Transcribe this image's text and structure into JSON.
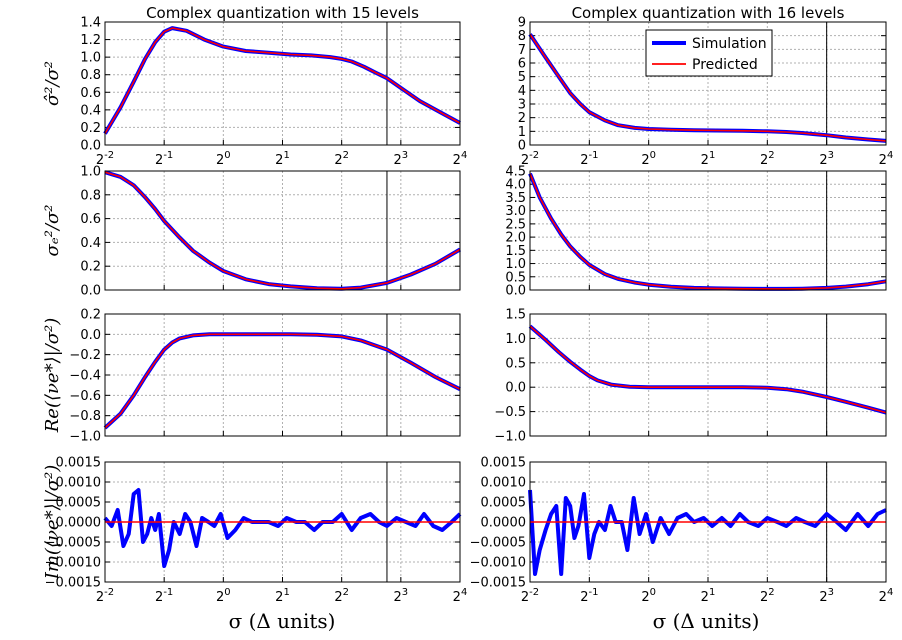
{
  "figure": {
    "x_label_left": "σ (Δ units)",
    "x_label_right": "σ (Δ units)"
  },
  "colors": {
    "simulation": "#0000ff",
    "predicted": "#ff0000",
    "grid": "#b0b0b0",
    "vline": "#000000"
  },
  "legend": {
    "simulation": "Simulation",
    "predicted": "Predicted",
    "placement": "upper-center"
  },
  "chart_data": [
    {
      "id": "r0c0",
      "type": "line",
      "title": "Complex quantization with 15 levels",
      "ylabel": "σ̂²/σ²",
      "xscale": "log2",
      "xlim": [
        0.25,
        16
      ],
      "ylim": [
        0,
        1.4
      ],
      "yticks": [
        "0.0",
        "0.2",
        "0.4",
        "0.6",
        "0.8",
        "1.0",
        "1.2",
        "1.4"
      ],
      "xticks": [
        "2^-2",
        "2^-1",
        "2^0",
        "2^1",
        "2^2",
        "2^3",
        "2^4"
      ],
      "vline_x": 6.8,
      "grid": true,
      "series": [
        {
          "name": "Simulation",
          "x": [
            0.25,
            0.3,
            0.35,
            0.4,
            0.45,
            0.5,
            0.55,
            0.65,
            0.8,
            1,
            1.3,
            1.7,
            2.2,
            2.8,
            3.5,
            4,
            4.5,
            5.2,
            6,
            6.8,
            8,
            10,
            13,
            16
          ],
          "y": [
            0.13,
            0.43,
            0.72,
            0.98,
            1.17,
            1.29,
            1.33,
            1.3,
            1.2,
            1.12,
            1.07,
            1.05,
            1.03,
            1.02,
            1.0,
            0.98,
            0.95,
            0.89,
            0.82,
            0.76,
            0.65,
            0.5,
            0.36,
            0.25
          ]
        },
        {
          "name": "Predicted",
          "x": [
            0.25,
            0.3,
            0.35,
            0.4,
            0.45,
            0.5,
            0.55,
            0.65,
            0.8,
            1,
            1.3,
            1.7,
            2.2,
            2.8,
            3.5,
            4,
            4.5,
            5.2,
            6,
            6.8,
            8,
            10,
            13,
            16
          ],
          "y": [
            0.13,
            0.43,
            0.72,
            0.98,
            1.17,
            1.29,
            1.33,
            1.3,
            1.2,
            1.12,
            1.07,
            1.05,
            1.03,
            1.02,
            1.0,
            0.98,
            0.95,
            0.89,
            0.82,
            0.76,
            0.65,
            0.5,
            0.36,
            0.25
          ]
        }
      ]
    },
    {
      "id": "r0c1",
      "type": "line",
      "title": "Complex quantization with 16 levels",
      "ylabel": "",
      "xscale": "log2",
      "xlim": [
        0.25,
        16
      ],
      "ylim": [
        0,
        9
      ],
      "yticks": [
        "0",
        "1",
        "2",
        "3",
        "4",
        "5",
        "6",
        "7",
        "8",
        "9"
      ],
      "xticks": [
        "2^-2",
        "2^-1",
        "2^0",
        "2^1",
        "2^2",
        "2^3",
        "2^4"
      ],
      "vline_x": 8,
      "grid": true,
      "legend": true,
      "series": [
        {
          "name": "Simulation",
          "x": [
            0.25,
            0.3,
            0.35,
            0.4,
            0.45,
            0.5,
            0.6,
            0.7,
            0.85,
            1,
            1.3,
            1.7,
            2.2,
            3,
            4,
            5,
            6,
            8,
            10,
            13,
            16
          ],
          "y": [
            8.1,
            6.4,
            5.0,
            3.8,
            3.0,
            2.4,
            1.8,
            1.45,
            1.25,
            1.17,
            1.12,
            1.08,
            1.06,
            1.04,
            1.0,
            0.95,
            0.88,
            0.72,
            0.55,
            0.4,
            0.3
          ]
        },
        {
          "name": "Predicted",
          "x": [
            0.25,
            0.3,
            0.35,
            0.4,
            0.45,
            0.5,
            0.6,
            0.7,
            0.85,
            1,
            1.3,
            1.7,
            2.2,
            3,
            4,
            5,
            6,
            8,
            10,
            13,
            16
          ],
          "y": [
            8.1,
            6.4,
            5.0,
            3.8,
            3.0,
            2.4,
            1.8,
            1.45,
            1.25,
            1.17,
            1.12,
            1.08,
            1.06,
            1.04,
            1.0,
            0.95,
            0.88,
            0.72,
            0.55,
            0.4,
            0.3
          ]
        }
      ]
    },
    {
      "id": "r1c0",
      "type": "line",
      "title": "",
      "ylabel": "σₑ²/σ²",
      "xscale": "log2",
      "xlim": [
        0.25,
        16
      ],
      "ylim": [
        0,
        1
      ],
      "yticks": [
        "0.0",
        "0.2",
        "0.4",
        "0.6",
        "0.8",
        "1.0"
      ],
      "xticks": [],
      "vline_x": 6.8,
      "grid": true,
      "series": [
        {
          "name": "Simulation",
          "x": [
            0.25,
            0.3,
            0.35,
            0.4,
            0.45,
            0.5,
            0.6,
            0.7,
            0.85,
            1,
            1.3,
            1.7,
            2.2,
            3,
            4,
            5,
            6.8,
            9,
            12,
            16
          ],
          "y": [
            0.99,
            0.95,
            0.88,
            0.78,
            0.68,
            0.58,
            0.44,
            0.33,
            0.23,
            0.16,
            0.09,
            0.05,
            0.03,
            0.015,
            0.01,
            0.02,
            0.06,
            0.13,
            0.22,
            0.34
          ]
        },
        {
          "name": "Predicted",
          "x": [
            0.25,
            0.3,
            0.35,
            0.4,
            0.45,
            0.5,
            0.6,
            0.7,
            0.85,
            1,
            1.3,
            1.7,
            2.2,
            3,
            4,
            5,
            6.8,
            9,
            12,
            16
          ],
          "y": [
            0.99,
            0.95,
            0.88,
            0.78,
            0.68,
            0.58,
            0.44,
            0.33,
            0.23,
            0.16,
            0.09,
            0.05,
            0.03,
            0.015,
            0.01,
            0.02,
            0.06,
            0.13,
            0.22,
            0.34
          ]
        }
      ]
    },
    {
      "id": "r1c1",
      "type": "line",
      "title": "",
      "ylabel": "",
      "xscale": "log2",
      "xlim": [
        0.25,
        16
      ],
      "ylim": [
        0,
        4.5
      ],
      "yticks": [
        "0.0",
        "0.5",
        "1.0",
        "1.5",
        "2.0",
        "2.5",
        "3.0",
        "3.5",
        "4.0",
        "4.5"
      ],
      "xticks": [],
      "vline_x": 8,
      "grid": true,
      "series": [
        {
          "name": "Simulation",
          "x": [
            0.25,
            0.28,
            0.32,
            0.36,
            0.4,
            0.45,
            0.5,
            0.6,
            0.7,
            0.85,
            1,
            1.3,
            1.7,
            2.2,
            3,
            4,
            5,
            6,
            8,
            10,
            13,
            16
          ],
          "y": [
            4.4,
            3.5,
            2.7,
            2.1,
            1.65,
            1.25,
            0.95,
            0.6,
            0.42,
            0.28,
            0.2,
            0.12,
            0.08,
            0.06,
            0.05,
            0.04,
            0.04,
            0.05,
            0.08,
            0.13,
            0.22,
            0.33
          ]
        },
        {
          "name": "Predicted",
          "x": [
            0.25,
            0.28,
            0.32,
            0.36,
            0.4,
            0.45,
            0.5,
            0.6,
            0.7,
            0.85,
            1,
            1.3,
            1.7,
            2.2,
            3,
            4,
            5,
            6,
            8,
            10,
            13,
            16
          ],
          "y": [
            4.4,
            3.5,
            2.7,
            2.1,
            1.65,
            1.25,
            0.95,
            0.6,
            0.42,
            0.28,
            0.2,
            0.12,
            0.08,
            0.06,
            0.05,
            0.04,
            0.04,
            0.05,
            0.08,
            0.13,
            0.22,
            0.33
          ]
        }
      ]
    },
    {
      "id": "r2c0",
      "type": "line",
      "title": "",
      "ylabel": "Re(⟨νe*⟩|/σ²)",
      "xscale": "log2",
      "xlim": [
        0.25,
        16
      ],
      "ylim": [
        -1,
        0.2
      ],
      "yticks": [
        "−1.0",
        "−0.8",
        "−0.6",
        "−0.4",
        "−0.2",
        "0.0",
        "0.2"
      ],
      "xticks": [],
      "vline_x": 6.8,
      "grid": true,
      "series": [
        {
          "name": "Simulation",
          "x": [
            0.25,
            0.3,
            0.35,
            0.4,
            0.45,
            0.5,
            0.55,
            0.6,
            0.7,
            0.85,
            1,
            1.3,
            1.7,
            2.2,
            3,
            4,
            5,
            6.8,
            9,
            12,
            16
          ],
          "y": [
            -0.92,
            -0.78,
            -0.6,
            -0.42,
            -0.27,
            -0.15,
            -0.08,
            -0.04,
            -0.01,
            0,
            0,
            0,
            0,
            0,
            -0.005,
            -0.02,
            -0.06,
            -0.15,
            -0.28,
            -0.42,
            -0.54
          ]
        },
        {
          "name": "Predicted",
          "x": [
            0.25,
            0.3,
            0.35,
            0.4,
            0.45,
            0.5,
            0.55,
            0.6,
            0.7,
            0.85,
            1,
            1.3,
            1.7,
            2.2,
            3,
            4,
            5,
            6.8,
            9,
            12,
            16
          ],
          "y": [
            -0.92,
            -0.78,
            -0.6,
            -0.42,
            -0.27,
            -0.15,
            -0.08,
            -0.04,
            -0.01,
            0,
            0,
            0,
            0,
            0,
            -0.005,
            -0.02,
            -0.06,
            -0.15,
            -0.28,
            -0.42,
            -0.54
          ]
        }
      ]
    },
    {
      "id": "r2c1",
      "type": "line",
      "title": "",
      "ylabel": "",
      "xscale": "log2",
      "xlim": [
        0.25,
        16
      ],
      "ylim": [
        -1,
        1.5
      ],
      "yticks": [
        "−1.0",
        "−0.5",
        "0.0",
        "0.5",
        "1.0",
        "1.5"
      ],
      "xticks": [],
      "vline_x": 8,
      "grid": true,
      "series": [
        {
          "name": "Simulation",
          "x": [
            0.25,
            0.3,
            0.35,
            0.4,
            0.45,
            0.5,
            0.55,
            0.65,
            0.8,
            1,
            1.3,
            1.7,
            2.2,
            3,
            4,
            5,
            6,
            8,
            10,
            13,
            16
          ],
          "y": [
            1.25,
            0.97,
            0.72,
            0.52,
            0.36,
            0.23,
            0.14,
            0.05,
            0.01,
            0,
            0,
            0,
            0,
            0,
            -0.01,
            -0.04,
            -0.09,
            -0.2,
            -0.3,
            -0.42,
            -0.52
          ]
        },
        {
          "name": "Predicted",
          "x": [
            0.25,
            0.3,
            0.35,
            0.4,
            0.45,
            0.5,
            0.55,
            0.65,
            0.8,
            1,
            1.3,
            1.7,
            2.2,
            3,
            4,
            5,
            6,
            8,
            10,
            13,
            16
          ],
          "y": [
            1.25,
            0.97,
            0.72,
            0.52,
            0.36,
            0.23,
            0.14,
            0.05,
            0.01,
            0,
            0,
            0,
            0,
            0,
            -0.01,
            -0.04,
            -0.09,
            -0.2,
            -0.3,
            -0.42,
            -0.52
          ]
        }
      ]
    },
    {
      "id": "r3c0",
      "type": "line",
      "title": "",
      "ylabel": "Im(⟨νe*⟩|/σ²)",
      "xscale": "log2",
      "xlim": [
        0.25,
        16
      ],
      "ylim": [
        -0.0015,
        0.0015
      ],
      "yticks": [
        "−0.0015",
        "−0.0010",
        "−0.0005",
        "0.0000",
        "0.0005",
        "0.0010",
        "0.0015"
      ],
      "xticks": [
        "2^-2",
        "2^-1",
        "2^0",
        "2^1",
        "2^2",
        "2^3",
        "2^4"
      ],
      "vline_x": 6.8,
      "grid": true,
      "series": [
        {
          "name": "Simulation",
          "x": [
            0.25,
            0.27,
            0.29,
            0.31,
            0.33,
            0.35,
            0.37,
            0.39,
            0.41,
            0.43,
            0.45,
            0.47,
            0.5,
            0.53,
            0.56,
            0.6,
            0.64,
            0.68,
            0.73,
            0.78,
            0.84,
            0.9,
            0.97,
            1.05,
            1.15,
            1.27,
            1.4,
            1.55,
            1.7,
            1.9,
            2.1,
            2.35,
            2.6,
            2.9,
            3.2,
            3.6,
            4,
            4.5,
            5,
            5.6,
            6.2,
            6.8,
            7.6,
            8.5,
            9.5,
            10.5,
            11.7,
            13,
            14.5,
            16
          ],
          "y": [
            0.0001,
            -0.0001,
            0.0003,
            -0.0006,
            -0.0003,
            0.0007,
            0.0008,
            -0.0005,
            -0.0003,
            0.0001,
            -0.0002,
            0.0002,
            -0.0011,
            -0.0007,
            0.0,
            -0.0003,
            0.0002,
            0.0,
            -0.0006,
            0.0001,
            0.0,
            -0.0001,
            0.0002,
            -0.0004,
            -0.0002,
            0.0001,
            0.0,
            0.0,
            0.0,
            -0.0001,
            0.0001,
            0.0,
            0.0,
            -0.0002,
            0.0,
            0.0,
            0.0002,
            -0.0002,
            0.0001,
            0.0002,
            0.0,
            -0.0001,
            0.0001,
            0.0,
            -0.0001,
            0.0002,
            -0.0001,
            -0.0002,
            0.0,
            0.0002
          ]
        },
        {
          "name": "Predicted",
          "x": [
            0.25,
            16
          ],
          "y": [
            0,
            0
          ]
        }
      ]
    },
    {
      "id": "r3c1",
      "type": "line",
      "title": "",
      "ylabel": "",
      "xscale": "log2",
      "xlim": [
        0.25,
        16
      ],
      "ylim": [
        -0.0015,
        0.0015
      ],
      "yticks": [
        "−0.0015",
        "−0.0010",
        "−0.0005",
        "0.0000",
        "0.0005",
        "0.0010",
        "0.0015"
      ],
      "xticks": [
        "2^-2",
        "2^-1",
        "2^0",
        "2^1",
        "2^2",
        "2^3",
        "2^4"
      ],
      "vline_x": 8,
      "grid": true,
      "series": [
        {
          "name": "Simulation",
          "x": [
            0.25,
            0.265,
            0.28,
            0.3,
            0.32,
            0.34,
            0.36,
            0.38,
            0.4,
            0.42,
            0.44,
            0.47,
            0.5,
            0.53,
            0.56,
            0.6,
            0.64,
            0.68,
            0.73,
            0.78,
            0.84,
            0.9,
            0.97,
            1.05,
            1.15,
            1.27,
            1.4,
            1.55,
            1.7,
            1.9,
            2.1,
            2.35,
            2.6,
            2.9,
            3.2,
            3.6,
            4,
            4.5,
            5,
            5.6,
            6.2,
            7,
            8,
            9,
            10,
            11.5,
            13,
            14.5,
            16
          ],
          "y": [
            0.0008,
            -0.0013,
            -0.0007,
            -0.0002,
            0.0002,
            0.0004,
            -0.0013,
            0.0006,
            0.0004,
            -0.0004,
            -0.0001,
            0.0007,
            -0.0009,
            -0.0003,
            0.0,
            -0.0002,
            0.0004,
            0.0,
            0.0,
            -0.0007,
            0.0006,
            -0.0003,
            0.0002,
            -0.0005,
            0.0001,
            -0.0003,
            0.0001,
            0.0002,
            0.0,
            0.0001,
            -0.0001,
            0.0001,
            -0.0001,
            0.0002,
            0.0,
            -0.0001,
            0.0001,
            0.0,
            -0.0001,
            0.0001,
            0.0,
            -0.0001,
            0.0002,
            0.0,
            -0.0002,
            0.0002,
            -0.0001,
            0.0002,
            0.0003
          ]
        },
        {
          "name": "Predicted",
          "x": [
            0.25,
            16
          ],
          "y": [
            0,
            0
          ]
        }
      ]
    }
  ]
}
